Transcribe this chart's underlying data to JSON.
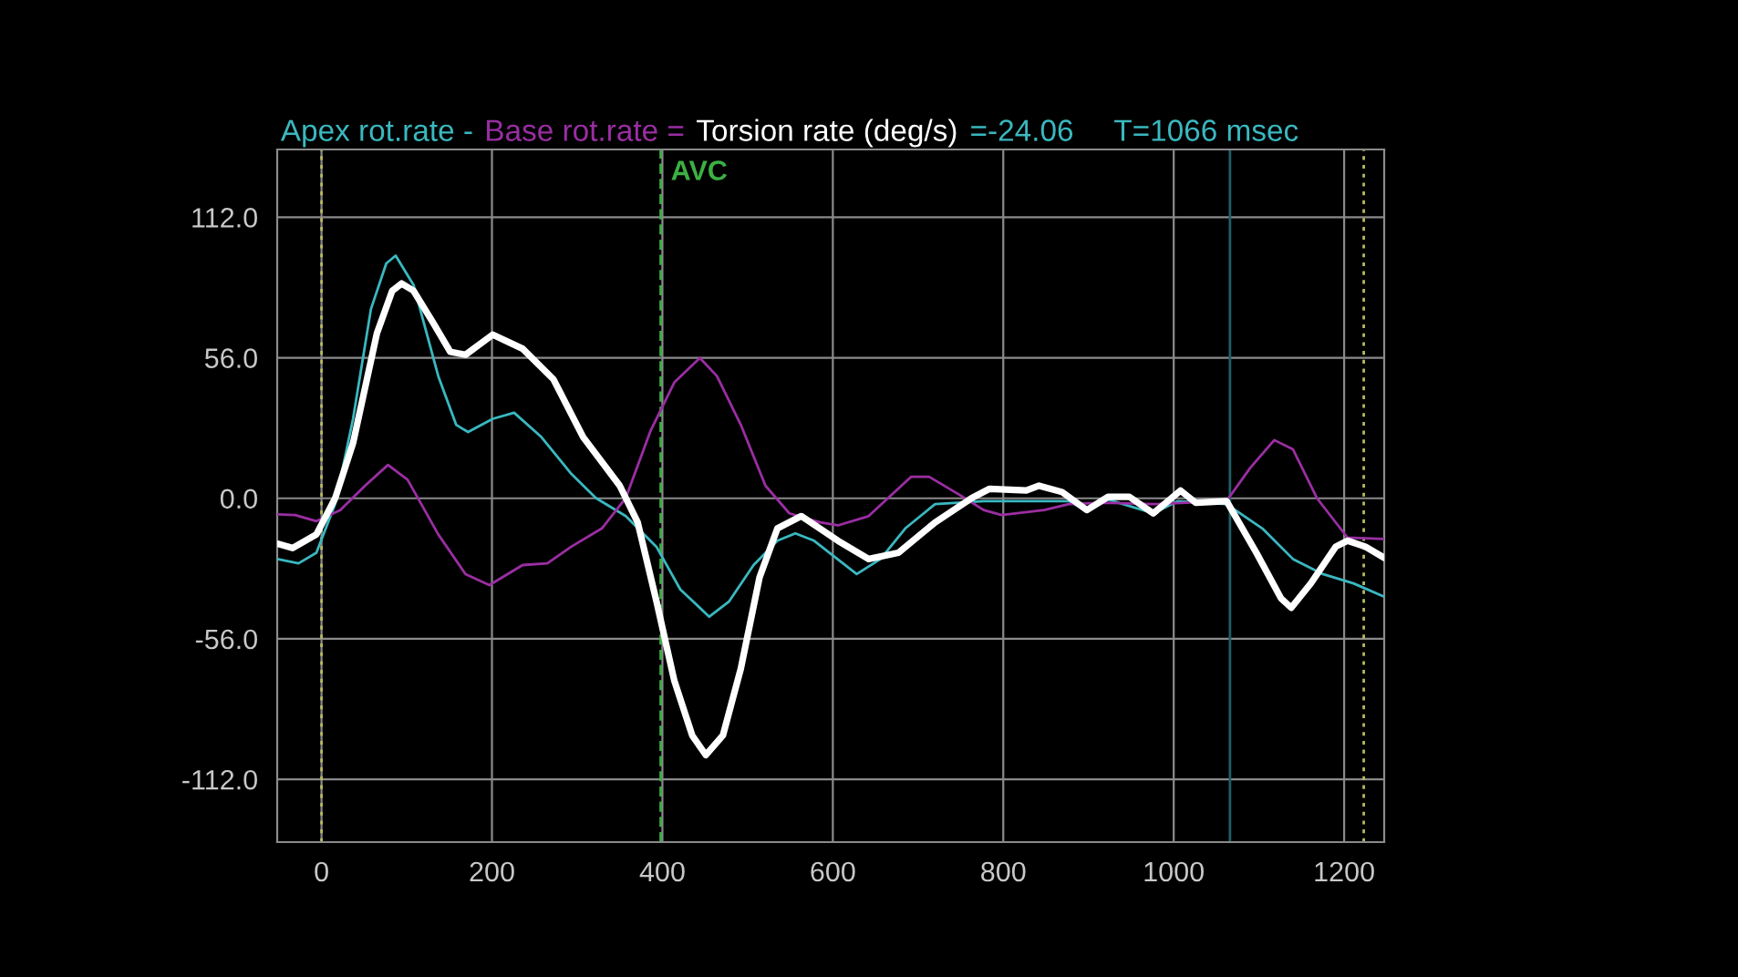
{
  "chart_data": {
    "type": "line",
    "annotations": [
      "=-24.06",
      "T=1066 msec"
    ],
    "legend": "top",
    "grid": true,
    "xlim": [
      -52,
      1247
    ],
    "ylim": [
      -137,
      139
    ],
    "xticks": [
      0,
      200,
      400,
      600,
      800,
      1000,
      1200
    ],
    "yticks": [
      {
        "value": 112,
        "label": "112.0"
      },
      {
        "value": 56,
        "label": "56.0"
      },
      {
        "value": 0,
        "label": "0.0"
      },
      {
        "value": -56,
        "label": "-56.0"
      },
      {
        "value": -112,
        "label": "-112.0"
      }
    ],
    "ref_lines": [
      {
        "axis": "x",
        "value": 0,
        "label": null,
        "color": "#b8b860",
        "line_style": "dotted"
      },
      {
        "axis": "x",
        "value": 398,
        "label": "AVC",
        "color": "#3cb043",
        "line_style": "dashed"
      },
      {
        "axis": "x",
        "value": 1066,
        "label": null,
        "color": "#1f5f66",
        "line_style": "solid"
      },
      {
        "axis": "x",
        "value": 1223,
        "label": null,
        "color": "#b8b860",
        "line_style": "dotted"
      }
    ],
    "series": [
      {
        "name": "Apex rot.rate -",
        "color": "#3ab8c0",
        "x": [
          -52,
          -27,
          -6,
          16,
          37,
          58,
          76,
          87,
          108,
          137,
          158,
          172,
          201,
          226,
          258,
          293,
          322,
          357,
          393,
          421,
          455,
          478,
          507,
          535,
          556,
          578,
          628,
          656,
          685,
          720,
          777,
          834,
          877,
          898,
          923,
          976,
          1005,
          1062,
          1104,
          1140,
          1175,
          1211,
          1247
        ],
        "values": [
          -24.2,
          -25.9,
          -21.7,
          -2.3,
          31.7,
          75.4,
          93.6,
          96.7,
          85,
          48.7,
          29.3,
          26.4,
          31.7,
          34.1,
          24.4,
          9.8,
          0.1,
          -7.1,
          -19.3,
          -36.3,
          -47.2,
          -41.2,
          -26.6,
          -16.9,
          -14,
          -16.9,
          -30.2,
          -24.2,
          -12,
          -2.3,
          -1.1,
          -1.1,
          -1.1,
          -5,
          -0.5,
          -6,
          -1.1,
          -2.3,
          -12,
          -24.2,
          -30.2,
          -33.9,
          -39.2
        ]
      },
      {
        "name": "Base rot.rate =",
        "color": "#9a2ea2",
        "x": [
          -52,
          -31,
          -6,
          22,
          51,
          78,
          101,
          137,
          169,
          197,
          236,
          265,
          293,
          329,
          357,
          386,
          414,
          444,
          464,
          492,
          521,
          549,
          585,
          606,
          642,
          692,
          713,
          749,
          777,
          798,
          848,
          877,
          919,
          976,
          1062,
          1090,
          1118,
          1140,
          1168,
          1204,
          1247
        ],
        "values": [
          -6.4,
          -6.7,
          -9.1,
          -4.7,
          5,
          13.3,
          7.4,
          -14.4,
          -30.2,
          -34.6,
          -26.6,
          -25.9,
          -19.3,
          -12,
          0.1,
          26.8,
          46.2,
          55.9,
          48.7,
          29.3,
          5,
          -6,
          -9.6,
          -10.8,
          -7.1,
          8.6,
          8.6,
          1.3,
          -4.7,
          -6.7,
          -4.7,
          -2.3,
          -1.8,
          -2.3,
          -1.1,
          12.2,
          23.2,
          19.5,
          0.1,
          -15.7,
          -16.2
        ]
      },
      {
        "name": "Torsion rate (deg/s)",
        "color": "#ffffff",
        "x": [
          -52,
          -34,
          -6,
          16,
          37,
          65,
          83,
          94,
          108,
          130,
          151,
          169,
          201,
          236,
          272,
          307,
          350,
          371,
          393,
          414,
          435,
          451,
          471,
          492,
          514,
          535,
          563,
          606,
          642,
          677,
          720,
          763,
          784,
          827,
          842,
          869,
          898,
          923,
          948,
          976,
          1008,
          1026,
          1062,
          1097,
          1126,
          1138,
          1161,
          1190,
          1204,
          1225,
          1247
        ],
        "values": [
          -18.1,
          -19.8,
          -14.4,
          0,
          22,
          65.7,
          82.7,
          85.6,
          82.7,
          70.5,
          58.4,
          57.2,
          65.2,
          59.6,
          47.5,
          24.4,
          5,
          -9.6,
          -41,
          -72.7,
          -94.5,
          -102.3,
          -94.5,
          -67.9,
          -31.5,
          -12,
          -7.1,
          -16.9,
          -24.2,
          -21.7,
          -9.6,
          0.1,
          3.8,
          3.1,
          5,
          2.5,
          -4.7,
          0.6,
          0.6,
          -6,
          3.1,
          -1.8,
          -1.1,
          -21.7,
          -39.9,
          -43.6,
          -33.9,
          -19.3,
          -16.9,
          -19.3,
          -23.7
        ]
      }
    ]
  }
}
